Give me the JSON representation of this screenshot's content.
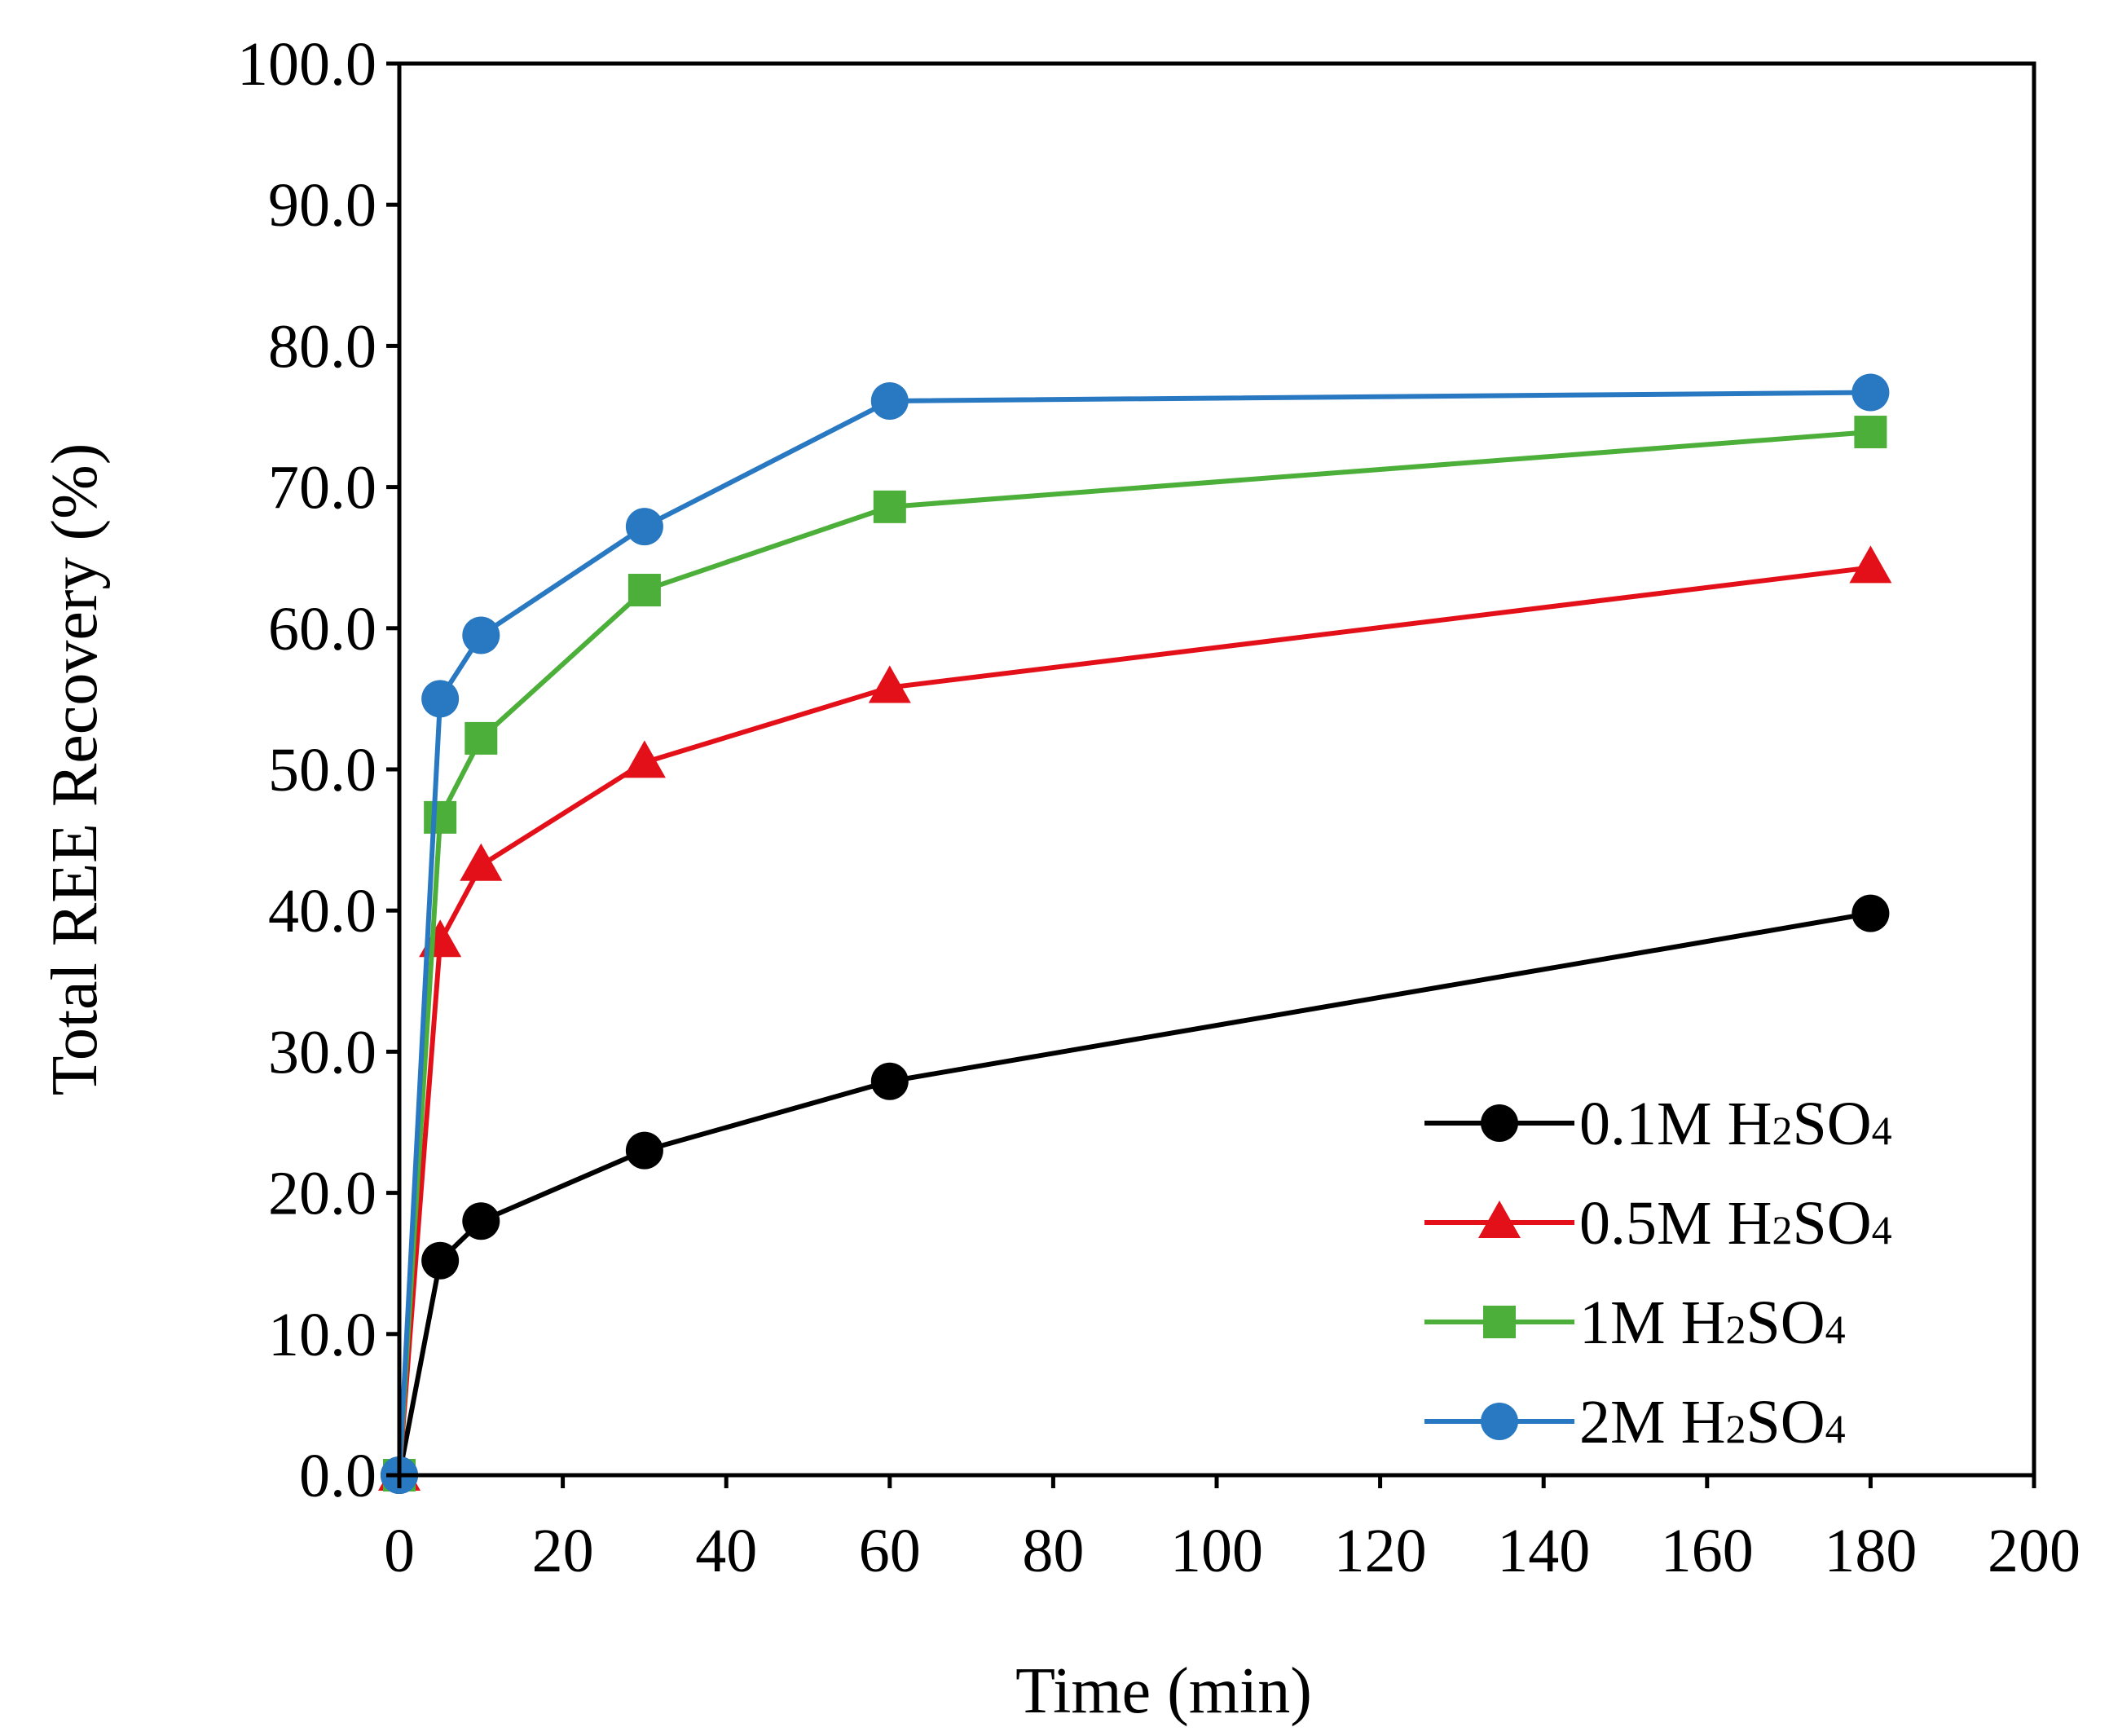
{
  "chart_data": {
    "type": "line",
    "title": "",
    "xlabel": "Time (min)",
    "ylabel": "Total REE Recovery (%)",
    "xlim": [
      0,
      200
    ],
    "ylim": [
      0,
      100
    ],
    "xticks": [
      "0",
      "20",
      "40",
      "60",
      "80",
      "100",
      "120",
      "140",
      "160",
      "180",
      "200"
    ],
    "yticks": [
      "0.0",
      "10.0",
      "20.0",
      "30.0",
      "40.0",
      "50.0",
      "60.0",
      "70.0",
      "80.0",
      "90.0",
      "100.0"
    ],
    "x": [
      0,
      5,
      10,
      30,
      60,
      180
    ],
    "grid": false,
    "legend_position": "bottom-right",
    "series": [
      {
        "name": "0.1M H₂SO₄",
        "name_parts": {
          "pre": "0.1M H",
          "s1": "2",
          "mid": "SO",
          "s2": "4"
        },
        "color": "#000000",
        "marker": "circle",
        "values": [
          0,
          15.2,
          18.0,
          23.0,
          27.9,
          39.8
        ]
      },
      {
        "name": "0.5M H₂SO₄",
        "name_parts": {
          "pre": "0.5M H",
          "s1": "2",
          "mid": "SO",
          "s2": "4"
        },
        "color": "#e3101a",
        "marker": "triangle",
        "values": [
          0,
          37.8,
          43.2,
          50.5,
          55.8,
          64.3
        ]
      },
      {
        "name": "1M H₂SO₄",
        "name_parts": {
          "pre": "1M H",
          "s1": "2",
          "mid": "SO",
          "s2": "4"
        },
        "color": "#4caf39",
        "marker": "square",
        "values": [
          0,
          46.6,
          52.2,
          62.7,
          68.6,
          73.9
        ]
      },
      {
        "name": "2M H₂SO₄",
        "name_parts": {
          "pre": "2M H",
          "s1": "2",
          "mid": "SO",
          "s2": "4"
        },
        "color": "#2878c2",
        "marker": "circle",
        "values": [
          0,
          55.0,
          59.5,
          67.2,
          76.1,
          76.7
        ]
      }
    ]
  }
}
